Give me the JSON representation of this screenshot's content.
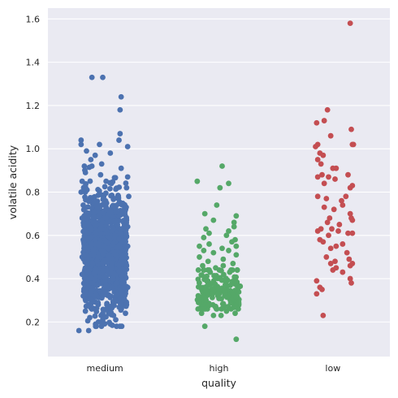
{
  "chart_data": {
    "type": "scatter",
    "subtype": "strip",
    "xlabel": "quality",
    "ylabel": "volatile acidity",
    "categories": [
      "medium",
      "high",
      "low"
    ],
    "ylim": [
      0.04,
      1.65
    ],
    "yticks": [
      0.2,
      0.4,
      0.6,
      0.8,
      1.0,
      1.2,
      1.4,
      1.6
    ],
    "ytick_labels": [
      "0.2",
      "0.4",
      "0.6",
      "0.8",
      "1.0",
      "1.2",
      "1.4",
      "1.6"
    ],
    "grid": true,
    "background": "#eaeaf2",
    "series": [
      {
        "category": "medium",
        "color": "#4c72b0",
        "points": [
          {
            "j": -0.12,
            "y": 1.33
          },
          {
            "j": -0.02,
            "y": 1.33
          },
          {
            "j": 0.15,
            "y": 1.24
          },
          {
            "j": 0.14,
            "y": 1.18
          },
          {
            "j": 0.14,
            "y": 1.07
          },
          {
            "j": -0.22,
            "y": 1.04
          },
          {
            "j": 0.13,
            "y": 1.04
          },
          {
            "j": -0.22,
            "y": 1.02
          },
          {
            "j": -0.05,
            "y": 1.02
          },
          {
            "j": 0.21,
            "y": 1.01
          },
          {
            "j": -0.17,
            "y": 0.99
          },
          {
            "j": 0.05,
            "y": 0.98
          },
          {
            "j": -0.09,
            "y": 0.97
          },
          {
            "j": -0.13,
            "y": 0.95
          },
          {
            "j": -0.03,
            "y": 0.93
          },
          {
            "j": -0.19,
            "y": 0.92
          },
          {
            "j": 0.15,
            "y": 0.91
          },
          {
            "j": -0.18,
            "y": 0.89
          },
          {
            "j": -0.04,
            "y": 0.88
          },
          {
            "j": 0.21,
            "y": 0.87
          },
          {
            "j": -0.21,
            "y": 0.85
          },
          {
            "j": 0.06,
            "y": 0.84
          },
          {
            "j": 0.2,
            "y": 0.82
          },
          {
            "j": -0.22,
            "y": 0.8
          },
          {
            "j": 0.22,
            "y": 0.78
          },
          {
            "j": -0.2,
            "y": 0.74
          },
          {
            "j": 0.18,
            "y": 0.72
          },
          {
            "j": -0.21,
            "y": 0.68
          },
          {
            "j": 0.21,
            "y": 0.64
          },
          {
            "j": -0.2,
            "y": 0.58
          },
          {
            "j": 0.21,
            "y": 0.55
          },
          {
            "j": -0.21,
            "y": 0.5
          },
          {
            "j": 0.2,
            "y": 0.46
          },
          {
            "j": -0.21,
            "y": 0.42
          },
          {
            "j": 0.21,
            "y": 0.36
          },
          {
            "j": -0.2,
            "y": 0.32
          },
          {
            "j": 0.2,
            "y": 0.28
          },
          {
            "j": -0.18,
            "y": 0.25
          },
          {
            "j": 0.19,
            "y": 0.24
          },
          {
            "j": -0.14,
            "y": 0.22
          },
          {
            "j": 0.1,
            "y": 0.21
          },
          {
            "j": -0.06,
            "y": 0.2
          },
          {
            "j": 0.05,
            "y": 0.19
          },
          {
            "j": -0.08,
            "y": 0.18
          },
          {
            "j": 0.14,
            "y": 0.18
          },
          {
            "j": -0.24,
            "y": 0.16
          },
          {
            "j": -0.15,
            "y": 0.16
          },
          {
            "j": -0.02,
            "y": 0.21
          },
          {
            "j": 0.08,
            "y": 0.23
          }
        ],
        "dense_band": {
          "n": 1100,
          "center": 0.52,
          "spread": 0.14,
          "min": 0.18,
          "max": 0.92
        }
      },
      {
        "category": "high",
        "color": "#55a868",
        "points": [
          {
            "j": 0.03,
            "y": 0.92
          },
          {
            "j": -0.2,
            "y": 0.85
          },
          {
            "j": 0.09,
            "y": 0.84
          },
          {
            "j": 0.01,
            "y": 0.82
          },
          {
            "j": -0.02,
            "y": 0.74
          },
          {
            "j": -0.13,
            "y": 0.7
          },
          {
            "j": 0.16,
            "y": 0.69
          },
          {
            "j": -0.05,
            "y": 0.67
          },
          {
            "j": 0.14,
            "y": 0.66
          },
          {
            "j": 0.14,
            "y": 0.64
          },
          {
            "j": -0.12,
            "y": 0.63
          },
          {
            "j": 0.09,
            "y": 0.62
          },
          {
            "j": -0.09,
            "y": 0.61
          },
          {
            "j": 0.07,
            "y": 0.6
          },
          {
            "j": -0.14,
            "y": 0.59
          },
          {
            "j": 0.15,
            "y": 0.58
          },
          {
            "j": 0.12,
            "y": 0.57
          },
          {
            "j": -0.09,
            "y": 0.56
          },
          {
            "j": -0.18,
            "y": 0.55
          },
          {
            "j": 0.16,
            "y": 0.55
          },
          {
            "j": 0.03,
            "y": 0.54
          },
          {
            "j": -0.14,
            "y": 0.53
          },
          {
            "j": 0.09,
            "y": 0.53
          },
          {
            "j": -0.05,
            "y": 0.52
          },
          {
            "j": 0.16,
            "y": 0.51
          },
          {
            "j": -0.18,
            "y": 0.5
          },
          {
            "j": 0.04,
            "y": 0.49
          },
          {
            "j": -0.1,
            "y": 0.48
          },
          {
            "j": 0.13,
            "y": 0.47
          },
          {
            "j": -0.15,
            "y": 0.46
          },
          {
            "j": 0.04,
            "y": 0.46
          },
          {
            "j": -0.03,
            "y": 0.45
          },
          {
            "j": 0.17,
            "y": 0.44
          },
          {
            "j": -0.19,
            "y": 0.44
          },
          {
            "j": 0.1,
            "y": 0.43
          },
          {
            "j": -0.08,
            "y": 0.43
          },
          {
            "j": 0.07,
            "y": 0.25
          },
          {
            "j": -0.16,
            "y": 0.24
          },
          {
            "j": 0.15,
            "y": 0.24
          },
          {
            "j": -0.05,
            "y": 0.23
          },
          {
            "j": 0.02,
            "y": 0.23
          },
          {
            "j": -0.13,
            "y": 0.18
          },
          {
            "j": 0.16,
            "y": 0.12
          }
        ],
        "dense_band": {
          "n": 170,
          "center": 0.34,
          "spread": 0.05,
          "min": 0.26,
          "max": 0.44
        }
      },
      {
        "category": "low",
        "color": "#c44e52",
        "points": [
          {
            "j": 0.16,
            "y": 1.58
          },
          {
            "j": -0.05,
            "y": 1.18
          },
          {
            "j": -0.08,
            "y": 1.13
          },
          {
            "j": -0.15,
            "y": 1.12
          },
          {
            "j": 0.17,
            "y": 1.09
          },
          {
            "j": -0.02,
            "y": 1.06
          },
          {
            "j": -0.14,
            "y": 1.02
          },
          {
            "j": 0.18,
            "y": 1.02
          },
          {
            "j": -0.16,
            "y": 1.01
          },
          {
            "j": 0.19,
            "y": 1.02
          },
          {
            "j": -0.12,
            "y": 0.98
          },
          {
            "j": -0.09,
            "y": 0.97
          },
          {
            "j": -0.14,
            "y": 0.95
          },
          {
            "j": -0.11,
            "y": 0.93
          },
          {
            "j": 0.03,
            "y": 0.91
          },
          {
            "j": 0.0,
            "y": 0.91
          },
          {
            "j": -0.1,
            "y": 0.88
          },
          {
            "j": 0.14,
            "y": 0.88
          },
          {
            "j": -0.04,
            "y": 0.87
          },
          {
            "j": -0.14,
            "y": 0.87
          },
          {
            "j": 0.02,
            "y": 0.86
          },
          {
            "j": -0.08,
            "y": 0.84
          },
          {
            "j": 0.18,
            "y": 0.83
          },
          {
            "j": 0.16,
            "y": 0.82
          },
          {
            "j": -0.14,
            "y": 0.78
          },
          {
            "j": 0.12,
            "y": 0.78
          },
          {
            "j": -0.06,
            "y": 0.77
          },
          {
            "j": 0.08,
            "y": 0.76
          },
          {
            "j": 0.09,
            "y": 0.74
          },
          {
            "j": -0.08,
            "y": 0.73
          },
          {
            "j": 0.01,
            "y": 0.72
          },
          {
            "j": 0.16,
            "y": 0.7
          },
          {
            "j": -0.03,
            "y": 0.68
          },
          {
            "j": 0.17,
            "y": 0.68
          },
          {
            "j": 0.18,
            "y": 0.67
          },
          {
            "j": -0.05,
            "y": 0.66
          },
          {
            "j": 0.06,
            "y": 0.65
          },
          {
            "j": -0.11,
            "y": 0.63
          },
          {
            "j": -0.01,
            "y": 0.63
          },
          {
            "j": -0.14,
            "y": 0.62
          },
          {
            "j": 0.05,
            "y": 0.62
          },
          {
            "j": 0.14,
            "y": 0.61
          },
          {
            "j": 0.18,
            "y": 0.61
          },
          {
            "j": -0.04,
            "y": 0.6
          },
          {
            "j": -0.12,
            "y": 0.58
          },
          {
            "j": -0.09,
            "y": 0.57
          },
          {
            "j": 0.09,
            "y": 0.56
          },
          {
            "j": 0.03,
            "y": 0.55
          },
          {
            "j": -0.02,
            "y": 0.54
          },
          {
            "j": 0.13,
            "y": 0.52
          },
          {
            "j": -0.06,
            "y": 0.5
          },
          {
            "j": 0.15,
            "y": 0.49
          },
          {
            "j": 0.02,
            "y": 0.48
          },
          {
            "j": 0.18,
            "y": 0.47
          },
          {
            "j": -0.02,
            "y": 0.47
          },
          {
            "j": 0.16,
            "y": 0.46
          },
          {
            "j": 0.03,
            "y": 0.45
          },
          {
            "j": 0.0,
            "y": 0.44
          },
          {
            "j": 0.09,
            "y": 0.43
          },
          {
            "j": 0.16,
            "y": 0.4
          },
          {
            "j": -0.15,
            "y": 0.39
          },
          {
            "j": 0.17,
            "y": 0.38
          },
          {
            "j": -0.12,
            "y": 0.36
          },
          {
            "j": -0.1,
            "y": 0.35
          },
          {
            "j": -0.15,
            "y": 0.33
          },
          {
            "j": -0.09,
            "y": 0.23
          }
        ]
      }
    ]
  }
}
